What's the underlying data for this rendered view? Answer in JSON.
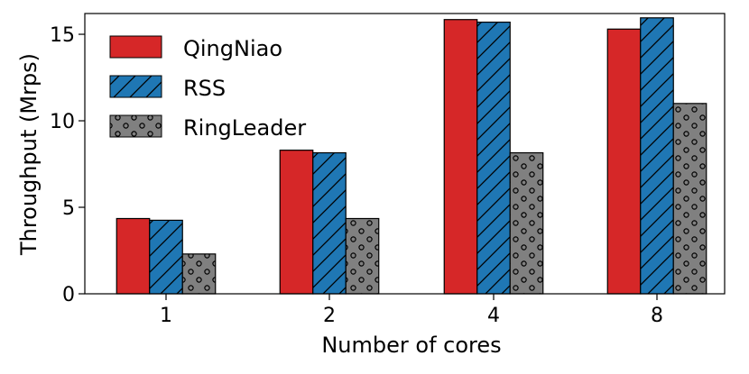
{
  "chart_data": {
    "type": "bar",
    "title": "",
    "xlabel": "Number of cores",
    "ylabel": "Throughput (Mrps)",
    "categories": [
      "1",
      "2",
      "4",
      "8"
    ],
    "ylim": [
      0,
      16.2
    ],
    "yticks": [
      0,
      5,
      10,
      15
    ],
    "grid": false,
    "legend_position": "top-left",
    "series": [
      {
        "name": "QingNiao",
        "values": [
          4.35,
          8.3,
          15.85,
          15.3
        ],
        "color": "#d62728",
        "pattern": "solid"
      },
      {
        "name": "RSS",
        "values": [
          4.25,
          8.15,
          15.7,
          15.95
        ],
        "color": "#1f77b4",
        "pattern": "diagonal-hatch"
      },
      {
        "name": "RingLeader",
        "values": [
          2.3,
          4.35,
          8.15,
          11.0
        ],
        "color": "#808080",
        "pattern": "circles"
      }
    ]
  }
}
